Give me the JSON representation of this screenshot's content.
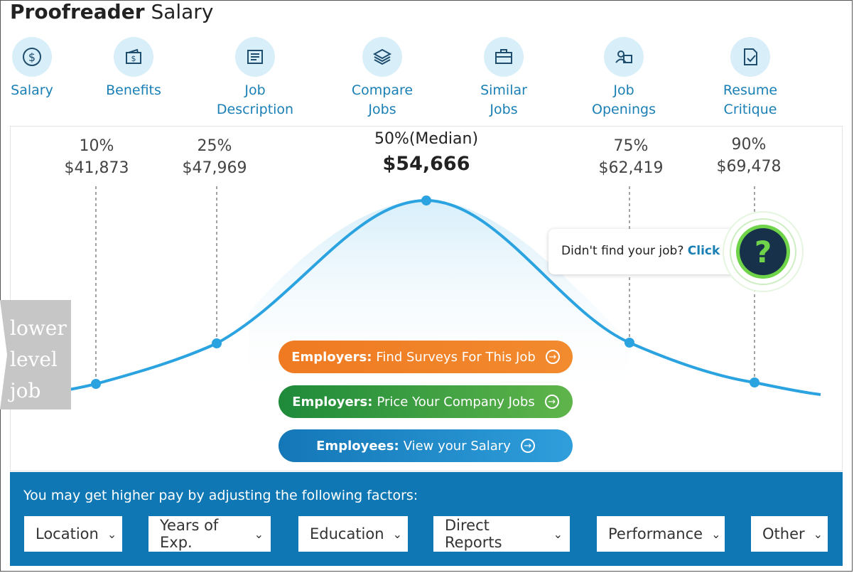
{
  "title": {
    "bold": "Proofreader",
    "rest": "Salary"
  },
  "nav": [
    {
      "icon": "dollar-icon",
      "label": "Salary"
    },
    {
      "icon": "wallet-icon",
      "label": "Benefits"
    },
    {
      "icon": "document-icon",
      "label": "Job\nDescription"
    },
    {
      "icon": "layers-icon",
      "label": "Compare\nJobs"
    },
    {
      "icon": "briefcase-icon",
      "label": "Similar\nJobs"
    },
    {
      "icon": "person-card-icon",
      "label": "Job\nOpenings"
    },
    {
      "icon": "resume-check-icon",
      "label": "Resume\nCritique"
    }
  ],
  "percentiles": [
    {
      "pct": "10%",
      "value": "$41,873"
    },
    {
      "pct": "25%",
      "value": "$47,969"
    },
    {
      "pct": "50%(Median)",
      "value": "$54,666"
    },
    {
      "pct": "75%",
      "value": "$62,419"
    },
    {
      "pct": "90%",
      "value": "$69,478"
    }
  ],
  "side_tab": "lower\nlevel\njob",
  "help": {
    "text": "Didn't find your job?",
    "link": "Click",
    "icon": "question-icon"
  },
  "cta": [
    {
      "bold": "Employers:",
      "text": "Find Surveys For This Job",
      "color": "#ef7a22"
    },
    {
      "bold": "Employers:",
      "text": "Price Your Company Jobs",
      "color": "#1e8a3a"
    },
    {
      "bold": "Employees:",
      "text": "View your Salary",
      "color": "#1477b8"
    }
  ],
  "factors": {
    "heading": "You may get higher pay by adjusting the following factors:",
    "options": [
      "Location",
      "Years of Exp.",
      "Education",
      "Direct Reports",
      "Performance",
      "Other"
    ]
  },
  "colors": {
    "accent": "#1a7fb5",
    "curve": "#2aa3e0",
    "factor_bg": "#0f77b4"
  }
}
